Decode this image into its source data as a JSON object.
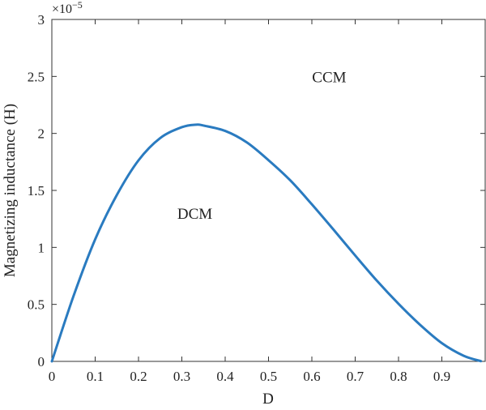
{
  "chart_data": {
    "type": "line",
    "title": "",
    "xlabel": "D",
    "ylabel": "Magnetizing inductance (H)",
    "xlim": [
      0,
      1
    ],
    "ylim": [
      0,
      3
    ],
    "y_multiplier_label": "×10",
    "y_multiplier_exponent": "−5",
    "grid": false,
    "x_ticks": [
      "0",
      "0.1",
      "0.2",
      "0.3",
      "0.4",
      "0.5",
      "0.6",
      "0.7",
      "0.8",
      "0.9"
    ],
    "y_ticks": [
      "0",
      "0.5",
      "1",
      "1.5",
      "2",
      "2.5",
      "3"
    ],
    "annotations": [
      {
        "text": "CCM",
        "x": 0.64,
        "y": 2.45
      },
      {
        "text": "DCM",
        "x": 0.33,
        "y": 1.25
      }
    ],
    "series": [
      {
        "color": "#2a7bc0",
        "x": [
          0.0,
          0.05,
          0.1,
          0.15,
          0.2,
          0.25,
          0.3,
          0.333,
          0.35,
          0.4,
          0.45,
          0.5,
          0.55,
          0.6,
          0.65,
          0.7,
          0.75,
          0.8,
          0.85,
          0.9,
          0.95,
          0.99
        ],
        "y": [
          0.0,
          0.573,
          1.071,
          1.46,
          1.764,
          1.959,
          2.055,
          2.077,
          2.069,
          2.022,
          1.921,
          1.765,
          1.589,
          1.378,
          1.156,
          0.929,
          0.708,
          0.505,
          0.32,
          0.16,
          0.05,
          0.002
        ]
      }
    ]
  }
}
